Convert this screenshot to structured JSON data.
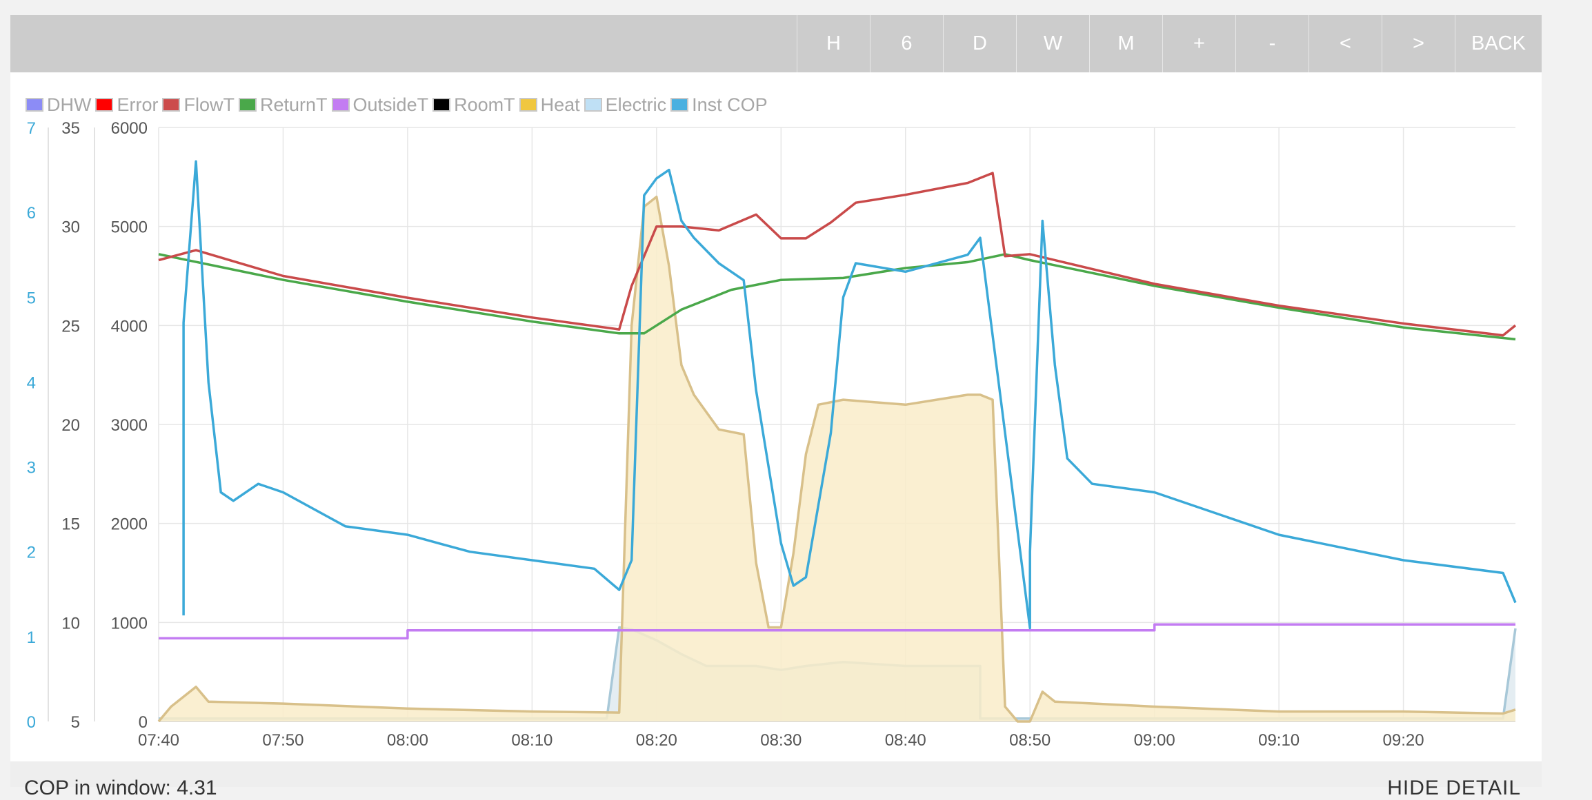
{
  "toolbar": {
    "buttons": [
      "H",
      "6",
      "D",
      "W",
      "M",
      "+",
      "-",
      "<",
      ">",
      "BACK"
    ]
  },
  "legend": [
    {
      "label": "DHW",
      "color": "#8c8cf6"
    },
    {
      "label": "Error",
      "color": "#ff0000"
    },
    {
      "label": "FlowT",
      "color": "#cc4b4b"
    },
    {
      "label": "ReturnT",
      "color": "#4aa84a"
    },
    {
      "label": "OutsideT",
      "color": "#c37cf2"
    },
    {
      "label": "RoomT",
      "color": "#000000"
    },
    {
      "label": "Heat",
      "color": "#f0c73f"
    },
    {
      "label": "Electric",
      "color": "#bfe0f5"
    },
    {
      "label": "Inst COP",
      "color": "#4ab0e0"
    }
  ],
  "chart_data": {
    "type": "line",
    "x_axis": {
      "ticks": [
        "07:40",
        "07:50",
        "08:00",
        "08:10",
        "08:20",
        "08:30",
        "08:40",
        "08:50",
        "09:00",
        "09:10",
        "09:20"
      ],
      "range": [
        "07:40",
        "09:29"
      ]
    },
    "y_axes": {
      "cop": {
        "ticks": [
          "0",
          "1",
          "2",
          "3",
          "4",
          "5",
          "6",
          "7"
        ],
        "range": [
          0,
          7
        ],
        "color": "#3ba9d8"
      },
      "temp": {
        "ticks": [
          "5",
          "10",
          "15",
          "20",
          "25",
          "30",
          "35"
        ],
        "range": [
          5,
          35
        ]
      },
      "power": {
        "ticks": [
          "0",
          "1000",
          "2000",
          "3000",
          "4000",
          "5000",
          "6000"
        ],
        "range": [
          0,
          6000
        ]
      }
    },
    "grid": true,
    "series": [
      {
        "name": "FlowT",
        "axis": "temp",
        "color": "#c94a4a",
        "x": [
          "07:40",
          "07:43",
          "07:50",
          "08:00",
          "08:10",
          "08:17",
          "08:18",
          "08:20",
          "08:22",
          "08:25",
          "08:28",
          "08:30",
          "08:32",
          "08:34",
          "08:36",
          "08:40",
          "08:45",
          "08:47",
          "08:48",
          "08:50",
          "09:00",
          "09:10",
          "09:20",
          "09:28",
          "09:29"
        ],
        "y": [
          28.3,
          28.8,
          27.5,
          26.4,
          25.4,
          24.8,
          27.0,
          30.0,
          30.0,
          29.8,
          30.6,
          29.4,
          29.4,
          30.2,
          31.2,
          31.6,
          32.2,
          32.7,
          28.5,
          28.6,
          27.1,
          26.0,
          25.1,
          24.5,
          25.0
        ]
      },
      {
        "name": "ReturnT",
        "axis": "temp",
        "color": "#4aa84a",
        "x": [
          "07:40",
          "07:50",
          "08:00",
          "08:10",
          "08:17",
          "08:19",
          "08:22",
          "08:26",
          "08:30",
          "08:35",
          "08:40",
          "08:45",
          "08:48",
          "08:50",
          "09:00",
          "09:10",
          "09:20",
          "09:29"
        ],
        "y": [
          28.6,
          27.3,
          26.2,
          25.2,
          24.6,
          24.6,
          25.8,
          26.8,
          27.3,
          27.4,
          27.9,
          28.2,
          28.6,
          28.3,
          27.0,
          25.9,
          24.9,
          24.3
        ]
      },
      {
        "name": "OutsideT",
        "axis": "temp",
        "color": "#c37cf2",
        "x": [
          "07:40",
          "08:00",
          "08:00",
          "09:00",
          "09:00",
          "09:29"
        ],
        "y": [
          9.2,
          9.2,
          9.6,
          9.6,
          9.9,
          9.9
        ]
      },
      {
        "name": "Heat",
        "axis": "power",
        "color": "#d8c08a",
        "fill": "#f9ecc9",
        "x": [
          "07:40",
          "07:41",
          "07:42",
          "07:43",
          "07:44",
          "07:50",
          "08:00",
          "08:10",
          "08:17",
          "08:18",
          "08:19",
          "08:20",
          "08:21",
          "08:22",
          "08:23",
          "08:25",
          "08:27",
          "08:28",
          "08:29",
          "08:30",
          "08:31",
          "08:32",
          "08:33",
          "08:35",
          "08:40",
          "08:45",
          "08:46",
          "08:47",
          "08:48",
          "08:49",
          "08:50",
          "08:51",
          "08:52",
          "09:00",
          "09:10",
          "09:20",
          "09:28",
          "09:29"
        ],
        "y": [
          0,
          150,
          250,
          350,
          200,
          180,
          130,
          100,
          90,
          4000,
          5200,
          5300,
          4600,
          3600,
          3300,
          2950,
          2900,
          1600,
          950,
          950,
          1700,
          2700,
          3200,
          3250,
          3200,
          3300,
          3300,
          3250,
          150,
          0,
          0,
          300,
          200,
          150,
          100,
          100,
          80,
          120
        ]
      },
      {
        "name": "Electric",
        "axis": "power",
        "color": "#a8c8d8",
        "fill": "#dfeaf0",
        "x": [
          "07:40",
          "08:16",
          "08:17",
          "08:18",
          "08:20",
          "08:22",
          "08:24",
          "08:26",
          "08:28",
          "08:30",
          "08:32",
          "08:35",
          "08:40",
          "08:45",
          "08:46",
          "08:46",
          "09:28",
          "09:29"
        ],
        "y": [
          30,
          30,
          950,
          930,
          820,
          680,
          560,
          560,
          560,
          520,
          560,
          600,
          560,
          560,
          560,
          30,
          30,
          940
        ]
      },
      {
        "name": "Inst COP",
        "axis": "cop",
        "color": "#3ba9d8",
        "x": [
          "07:42",
          "07:42",
          "07:43",
          "07:44",
          "07:45",
          "07:46",
          "07:48",
          "07:50",
          "07:55",
          "08:00",
          "08:05",
          "08:10",
          "08:15",
          "08:17",
          "08:18",
          "08:19",
          "08:20",
          "08:21",
          "08:22",
          "08:23",
          "08:25",
          "08:27",
          "08:28",
          "08:30",
          "08:31",
          "08:32",
          "08:34",
          "08:35",
          "08:36",
          "08:40",
          "08:45",
          "08:46",
          "08:50",
          "08:50",
          "08:51",
          "08:52",
          "08:53",
          "08:55",
          "09:00",
          "09:10",
          "09:20",
          "09:28",
          "09:29"
        ],
        "y": [
          1.25,
          4.7,
          6.6,
          4.0,
          2.7,
          2.6,
          2.8,
          2.7,
          2.3,
          2.2,
          2.0,
          1.9,
          1.8,
          1.55,
          1.9,
          6.2,
          6.4,
          6.5,
          5.9,
          5.7,
          5.4,
          5.2,
          3.9,
          2.1,
          1.6,
          1.7,
          3.4,
          5.0,
          5.4,
          5.3,
          5.5,
          5.7,
          1.1,
          2.0,
          5.9,
          4.2,
          3.1,
          2.8,
          2.7,
          2.2,
          1.9,
          1.75,
          1.4
        ]
      }
    ]
  },
  "footer": {
    "cop_text": "COP in window: 4.31",
    "hide_label": "HIDE DETAIL"
  }
}
